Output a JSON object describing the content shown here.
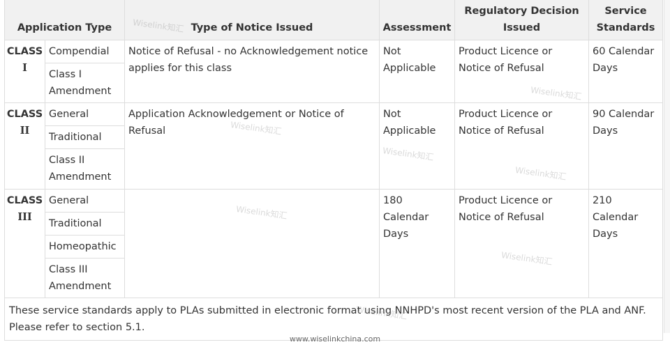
{
  "table": {
    "headers": {
      "application_type": "Application Type",
      "notice": "Type of Notice Issued",
      "assessment": "Assessment",
      "decision": "Regulatory Decision Issued",
      "service": "Service Standards"
    },
    "classes": [
      {
        "label": "CLASS",
        "numeral": "I",
        "subtypes": [
          "Compendial",
          "Class I Amendment"
        ],
        "notice": "Notice of Refusal - no Acknowledgement notice applies for this class",
        "assessment": "Not Applicable",
        "decision": "Product Licence or Notice of Refusal",
        "service": "60 Calendar Days"
      },
      {
        "label": "CLASS",
        "numeral": "II",
        "subtypes": [
          "General",
          "Traditional",
          "Class II Amendment"
        ],
        "notice": "Application Acknowledgement or Notice of Refusal",
        "assessment": "Not Applicable",
        "decision": "Product Licence or Notice of Refusal",
        "service": "90 Calendar Days"
      },
      {
        "label": "CLASS",
        "numeral": "III",
        "subtypes": [
          "General",
          "Traditional",
          "Homeopathic",
          "Class III Amendment"
        ],
        "notice": "",
        "assessment": "180 Calendar Days",
        "decision": "Product Licence or Notice of Refusal",
        "service": "210 Calendar Days"
      }
    ],
    "footnote": "These service standards apply to PLAs submitted in electronic format using NNHPD's most recent version of the PLA and ANF. Please refer to section 5.1."
  },
  "footer_url": "www.wiselinkchina.com",
  "watermark": "Wiselink知汇"
}
